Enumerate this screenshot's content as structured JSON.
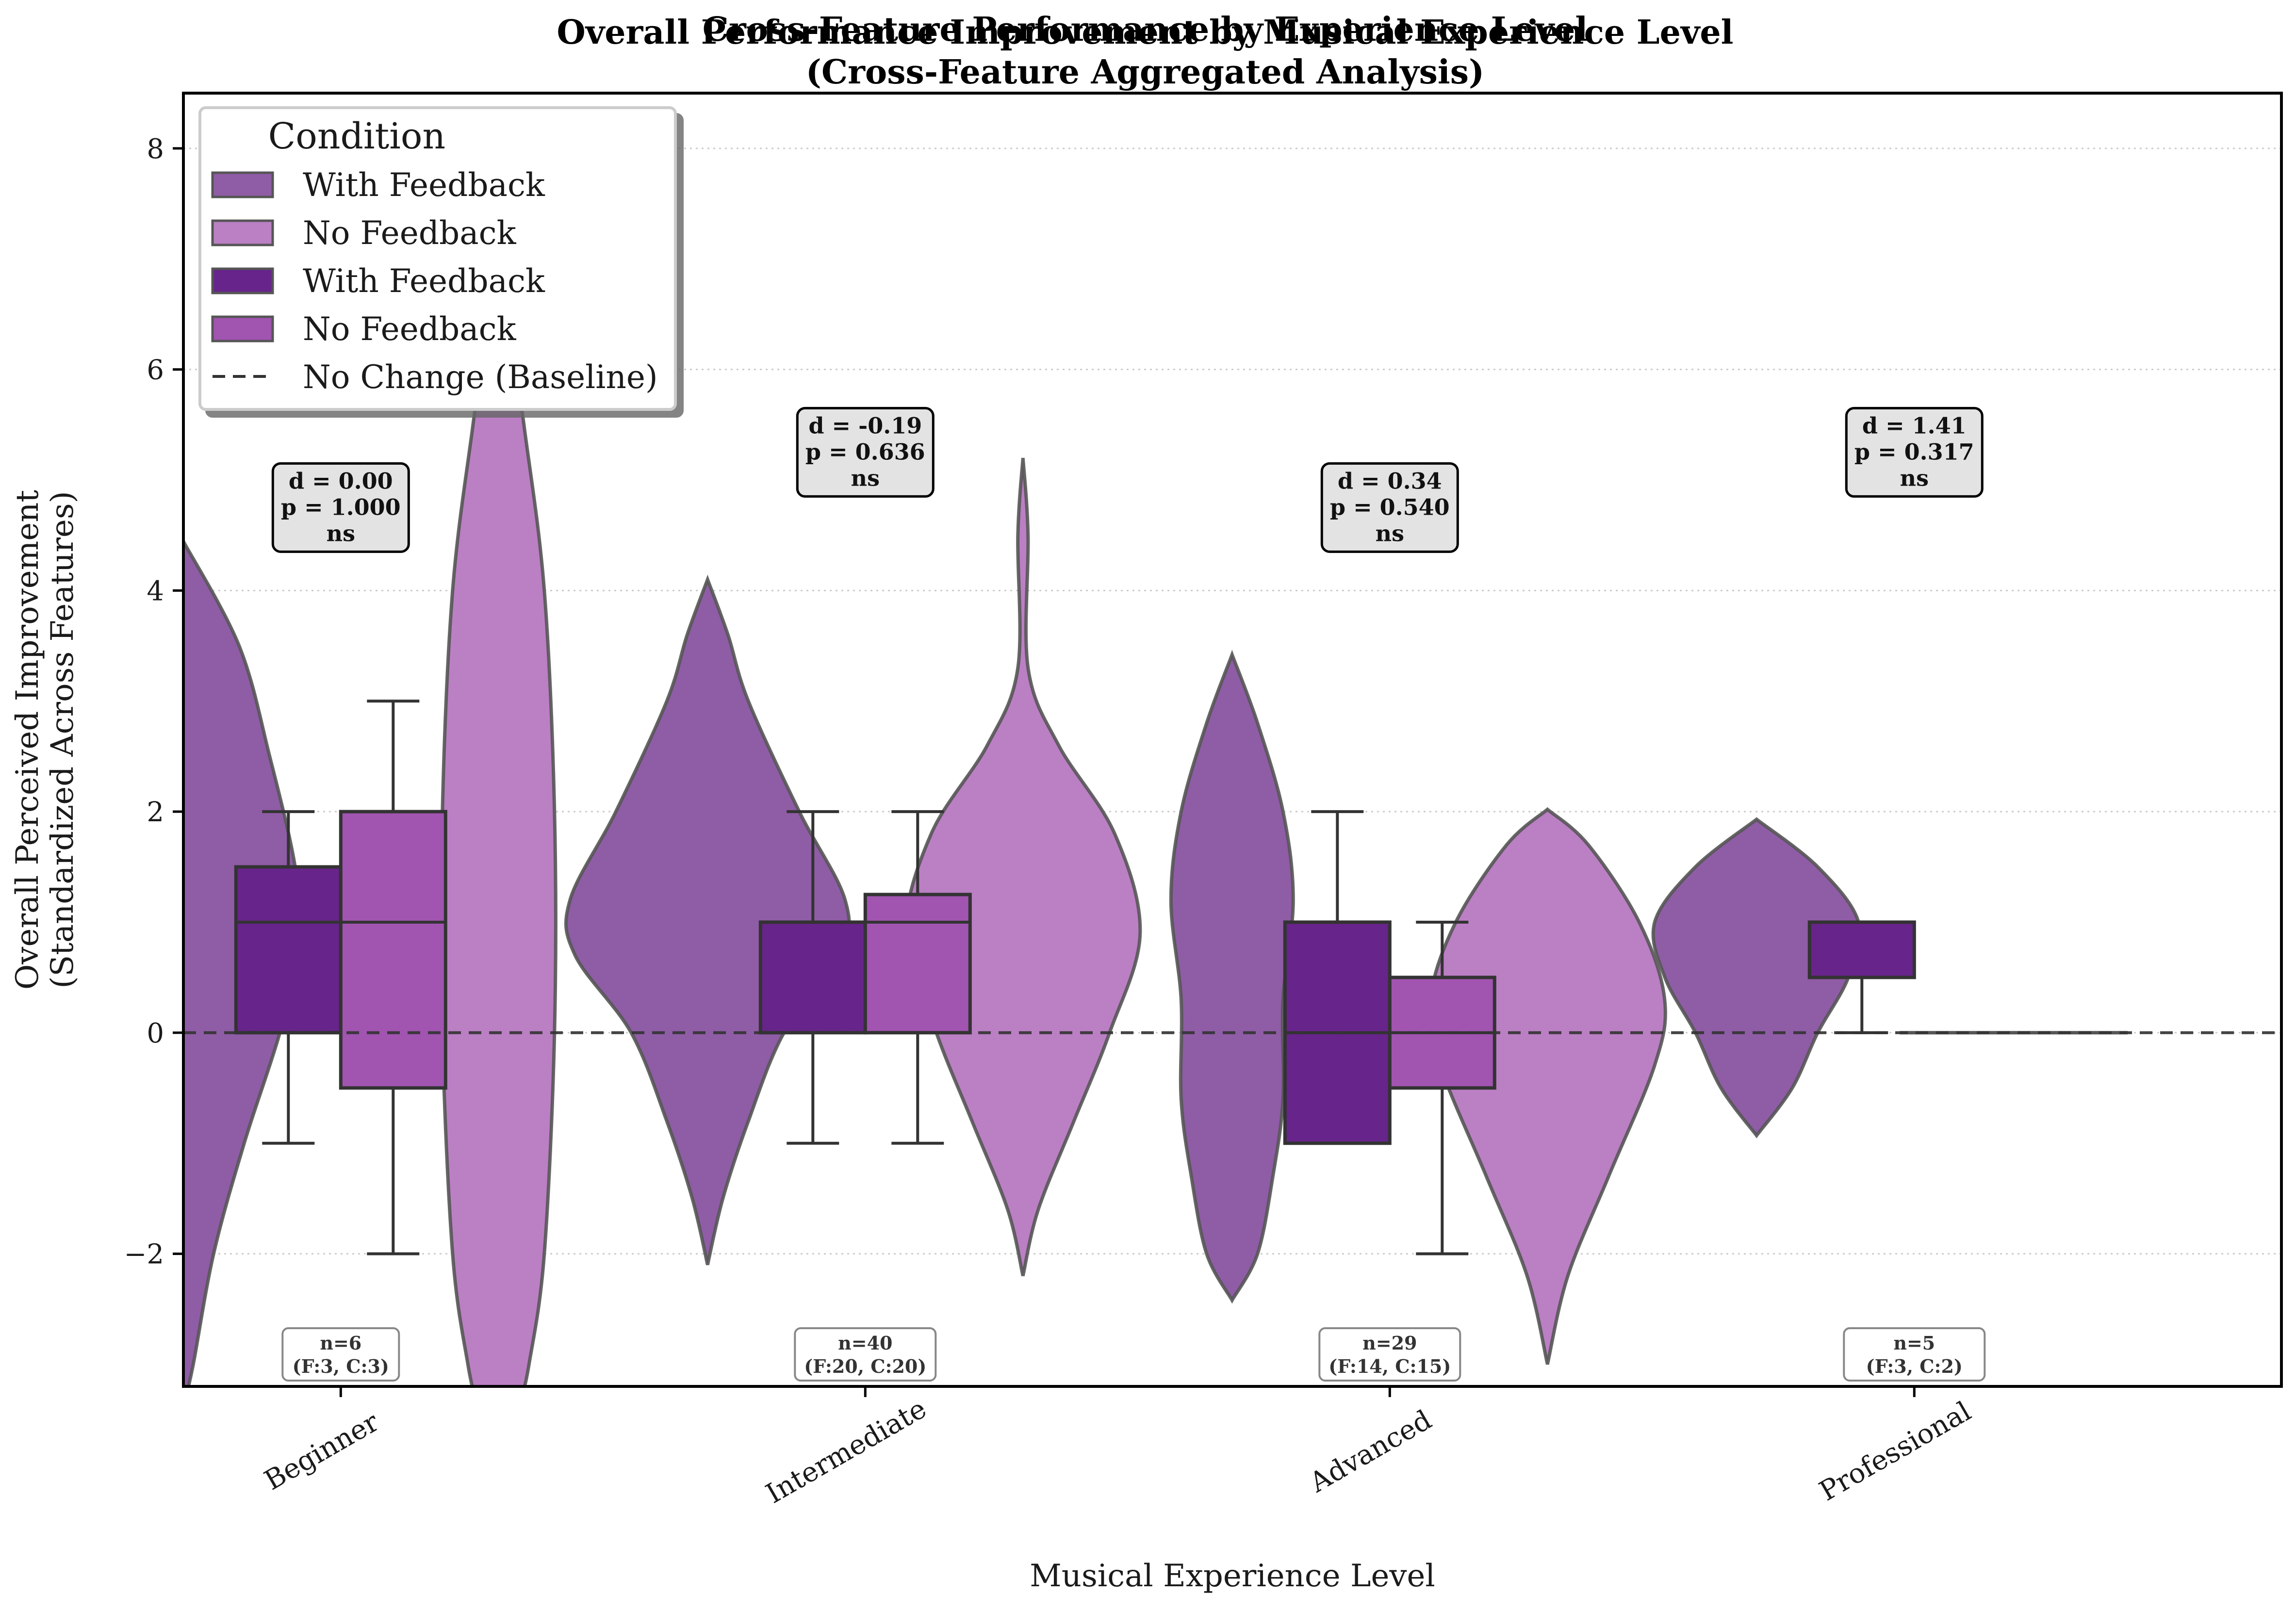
{
  "chart_data": {
    "type": "violin",
    "title_back": "Cross-Feature Performance by Experience Level",
    "title_front_line1": "Overall Performance Improvement by Musical Experience Level",
    "title_front_line2": "(Cross-Feature Aggregated Analysis)",
    "xlabel": "Musical Experience Level",
    "ylabel_line1": "Overall Perceived Improvement",
    "ylabel_line2": "(Standardized Across Features)",
    "ylim": [
      -3.2,
      8.5
    ],
    "yticks": [
      -2,
      0,
      2,
      4,
      6,
      8
    ],
    "ytick_labels": [
      "−2",
      "0",
      "2",
      "4",
      "6",
      "8"
    ],
    "categories": [
      "Beginner",
      "Intermediate",
      "Advanced",
      "Professional"
    ],
    "baseline": 0,
    "grid": "horizontal dotted",
    "colors": {
      "violin_with_feedback": "#8f5ca6",
      "violin_no_feedback": "#bb7fc4",
      "box_with_feedback": "#67248a",
      "box_no_feedback": "#a154b0",
      "edge": "#333333",
      "stat_box_bg": "#e3e3e3"
    },
    "legend": {
      "title": "Condition",
      "position": "top-left",
      "entries": [
        {
          "label": "With Feedback",
          "kind": "violin-with"
        },
        {
          "label": "No Feedback",
          "kind": "violin-no"
        },
        {
          "label": "With Feedback",
          "kind": "box-with"
        },
        {
          "label": "No Feedback",
          "kind": "box-no"
        },
        {
          "label": "No Change (Baseline)",
          "kind": "line"
        }
      ]
    },
    "groups": [
      {
        "category": "Beginner",
        "with_feedback": {
          "violin": [
            [
              -3.4,
              0.0
            ],
            [
              -3.0,
              0.02
            ],
            [
              -2.0,
              0.06
            ],
            [
              -1.0,
              0.12
            ],
            [
              0.0,
              0.19
            ],
            [
              0.8,
              0.23
            ],
            [
              1.5,
              0.22
            ],
            [
              2.5,
              0.17
            ],
            [
              3.5,
              0.11
            ],
            [
              4.45,
              0.0
            ]
          ],
          "box": {
            "q1": 0,
            "median": 1,
            "q3": 1.5,
            "whislo": -1,
            "whishi": 2
          }
        },
        "no_feedback": {
          "violin": [
            [
              -3.4,
              0.04
            ],
            [
              -3.0,
              0.06
            ],
            [
              -2.0,
              0.09
            ],
            [
              0.0,
              0.11
            ],
            [
              2.0,
              0.11
            ],
            [
              4.0,
              0.09
            ],
            [
              5.5,
              0.05
            ],
            [
              6.5,
              0.02
            ]
          ],
          "box": {
            "q1": -0.5,
            "median": 1,
            "q3": 2,
            "whislo": -2,
            "whishi": 3
          }
        },
        "stats": {
          "d": "d = 0.00",
          "p": "p = 1.000",
          "sig": "ns"
        },
        "n": {
          "line1": "n=6",
          "line2": "(F:3, C:3)"
        }
      },
      {
        "category": "Intermediate",
        "with_feedback": {
          "violin": [
            [
              -2.1,
              0.0
            ],
            [
              -1.5,
              0.03
            ],
            [
              -0.8,
              0.08
            ],
            [
              0.0,
              0.15
            ],
            [
              0.7,
              0.26
            ],
            [
              1.2,
              0.27
            ],
            [
              2.0,
              0.18
            ],
            [
              3.0,
              0.08
            ],
            [
              3.6,
              0.04
            ],
            [
              4.1,
              0.0
            ]
          ],
          "box": {
            "q1": 0,
            "median": 1,
            "q3": 1,
            "whislo": -1,
            "whishi": 2
          }
        },
        "no_feedback": {
          "violin": [
            [
              -2.2,
              0.0
            ],
            [
              -1.6,
              0.03
            ],
            [
              -0.8,
              0.1
            ],
            [
              0.0,
              0.17
            ],
            [
              0.9,
              0.23
            ],
            [
              1.8,
              0.18
            ],
            [
              2.6,
              0.07
            ],
            [
              3.3,
              0.01
            ],
            [
              4.5,
              0.01
            ],
            [
              5.2,
              0.0
            ]
          ],
          "box": {
            "q1": 0,
            "median": 1,
            "q3": 1.25,
            "whislo": -1,
            "whishi": 2
          }
        },
        "stats": {
          "d": "d = -0.19",
          "p": "p = 0.636",
          "sig": "ns"
        },
        "n": {
          "line1": "n=40",
          "line2": "(F:20, C:20)"
        }
      },
      {
        "category": "Advanced",
        "with_feedback": {
          "violin": [
            [
              -2.42,
              0.0
            ],
            [
              -2.0,
              0.05
            ],
            [
              -1.3,
              0.08
            ],
            [
              -0.6,
              0.1
            ],
            [
              0.3,
              0.1
            ],
            [
              1.2,
              0.12
            ],
            [
              2.0,
              0.1
            ],
            [
              2.8,
              0.05
            ],
            [
              3.42,
              0.0
            ]
          ],
          "box": {
            "q1": -1,
            "median": 0,
            "q3": 1,
            "whislo": -1,
            "whishi": 2
          }
        },
        "no_feedback": {
          "violin": [
            [
              -3.0,
              0.0
            ],
            [
              -2.2,
              0.04
            ],
            [
              -1.3,
              0.12
            ],
            [
              -0.3,
              0.21
            ],
            [
              0.3,
              0.23
            ],
            [
              1.0,
              0.18
            ],
            [
              1.7,
              0.08
            ],
            [
              2.02,
              0.0
            ]
          ],
          "box": {
            "q1": -0.5,
            "median": 0,
            "q3": 0.5,
            "whislo": -2,
            "whishi": 1
          }
        },
        "stats": {
          "d": "d = 0.34",
          "p": "p = 0.540",
          "sig": "ns"
        },
        "n": {
          "line1": "n=29",
          "line2": "(F:14, C:15)"
        }
      },
      {
        "category": "Professional",
        "with_feedback": {
          "violin": [
            [
              -0.93,
              0.0
            ],
            [
              -0.5,
              0.07
            ],
            [
              0.0,
              0.12
            ],
            [
              0.5,
              0.18
            ],
            [
              1.0,
              0.2
            ],
            [
              1.5,
              0.12
            ],
            [
              1.93,
              0.0
            ]
          ],
          "box": {
            "q1": 0.5,
            "median": 1,
            "q3": 1,
            "whislo": 0,
            "whishi": 1
          }
        },
        "no_feedback": {
          "violin": [],
          "box": {
            "q1": 0,
            "median": 0,
            "q3": 0,
            "whislo": 0,
            "whishi": 0
          }
        },
        "stats": {
          "d": "d = 1.41",
          "p": "p = 0.317",
          "sig": "ns"
        },
        "n": {
          "line1": "n=5",
          "line2": "(F:3, C:2)"
        }
      }
    ]
  }
}
